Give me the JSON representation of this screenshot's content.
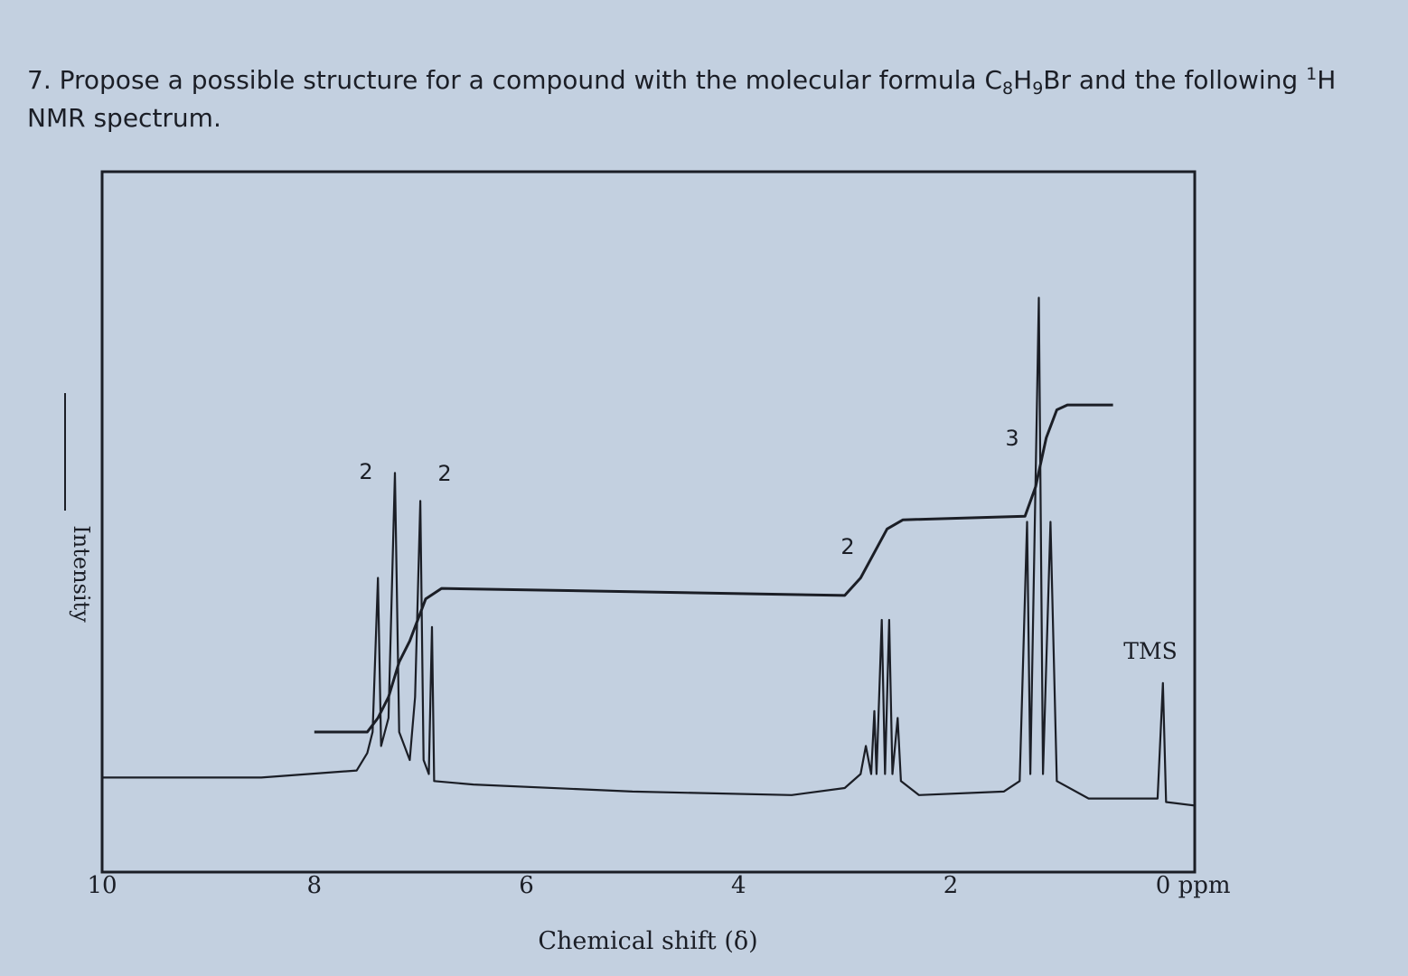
{
  "question": [
    "7. Propose a possible structure for a compound with the molecular formula C",
    "8",
    "H",
    "9",
    "Br and the following ",
    "1",
    "H",
    "NMR spectrum."
  ],
  "chart_data": {
    "type": "line",
    "xlabel": "Chemical shift (δ)",
    "ylabel": "Intensity",
    "xlim": [
      10,
      -0.3
    ],
    "ylim": [
      0,
      100
    ],
    "xticks": [
      10,
      8,
      6,
      4,
      2,
      {
        "value": 0,
        "label": "0 ppm"
      }
    ],
    "annotations": [
      "2",
      "2",
      "2",
      "3",
      "TMS"
    ],
    "series": [
      {
        "color": "#1b1e26",
        "x": [
          10.0,
          8.5,
          7.6,
          7.5,
          7.45,
          7.4,
          7.37,
          7.3,
          7.24,
          7.2,
          7.1,
          7.05,
          7.0,
          6.97,
          6.92,
          6.89,
          6.87,
          6.5,
          5.0,
          3.5,
          3.0,
          2.85,
          2.8,
          2.75,
          2.72,
          2.7,
          2.65,
          2.62,
          2.58,
          2.55,
          2.5,
          2.47,
          2.3,
          1.5,
          1.35,
          1.28,
          1.25,
          1.17,
          1.13,
          1.06,
          1.0,
          0.7,
          0.05,
          0.0,
          -0.03,
          -0.3
        ],
        "values": [
          13.5,
          13.5,
          14.5,
          17,
          20,
          42,
          18,
          22,
          57,
          20,
          16,
          25,
          53,
          16,
          14,
          35,
          13,
          12.5,
          11.5,
          11,
          12,
          14,
          18,
          14,
          23,
          14,
          36,
          14,
          36,
          14,
          22,
          13,
          11,
          11.5,
          13,
          50,
          14,
          82,
          14,
          50,
          13,
          10.5,
          10.5,
          27,
          10,
          9.5
        ]
      },
      {
        "color": "#1b1e26",
        "x": [
          8.0,
          7.5,
          7.4,
          7.3,
          7.2,
          7.1,
          6.95,
          6.8,
          3.0,
          2.85,
          2.6,
          2.45,
          1.3,
          1.2,
          1.1,
          1.0,
          0.9,
          0.47
        ],
        "values": [
          20,
          20,
          22,
          25,
          30,
          33,
          39,
          40.5,
          39.5,
          42,
          49,
          50.3,
          50.8,
          55,
          62,
          66,
          66.7,
          66.7
        ]
      }
    ]
  }
}
